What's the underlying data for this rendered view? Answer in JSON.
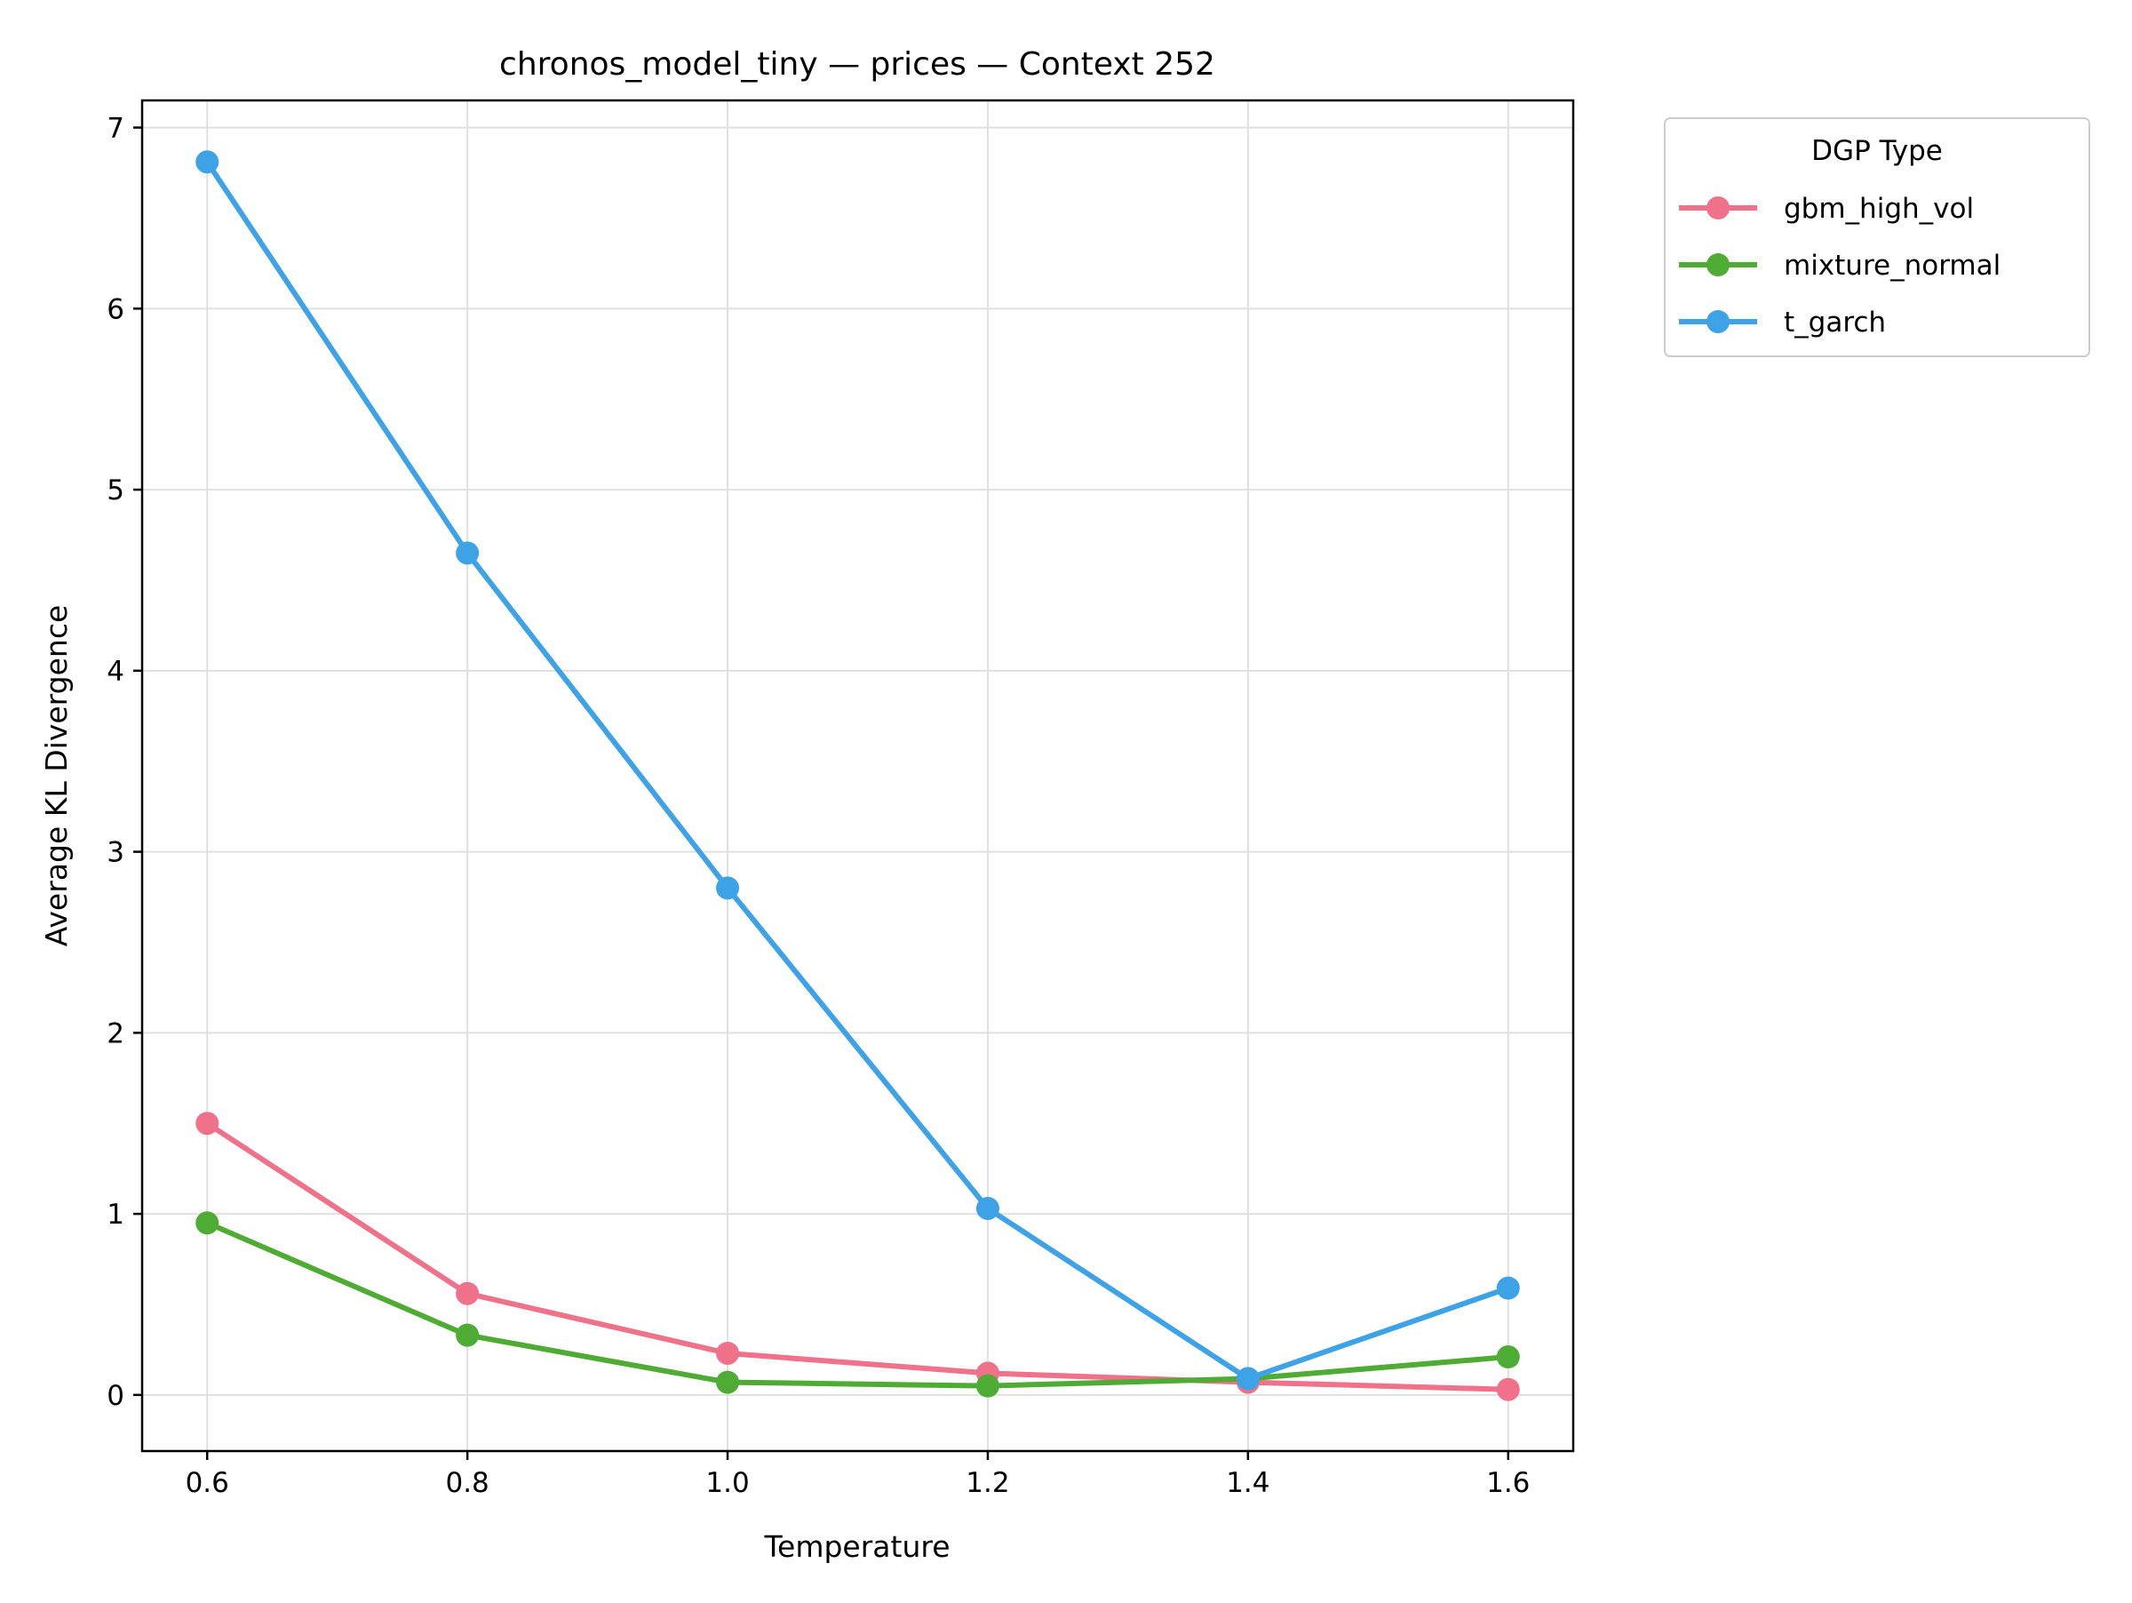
{
  "chart_data": {
    "type": "line",
    "title": "chronos_model_tiny — prices — Context 252",
    "xlabel": "Temperature",
    "ylabel": "Average KL Divergence",
    "x": [
      0.6,
      0.8,
      1.0,
      1.2,
      1.4,
      1.6
    ],
    "x_tick_labels": [
      "0.6",
      "0.8",
      "1.0",
      "1.2",
      "1.4",
      "1.6"
    ],
    "y_ticks": [
      0,
      1,
      2,
      3,
      4,
      5,
      6,
      7
    ],
    "y_tick_labels": [
      "0",
      "1",
      "2",
      "3",
      "4",
      "5",
      "6",
      "7"
    ],
    "xlim": [
      0.55,
      1.65
    ],
    "ylim": [
      -0.31,
      7.15
    ],
    "grid": true,
    "legend": {
      "title": "DGP Type",
      "placement": "outside-top-right"
    },
    "series": [
      {
        "name": "gbm_high_vol",
        "color": "#f0718a",
        "values": [
          1.5,
          0.56,
          0.23,
          0.12,
          0.07,
          0.03
        ]
      },
      {
        "name": "mixture_normal",
        "color": "#4eab33",
        "values": [
          0.95,
          0.33,
          0.07,
          0.05,
          0.09,
          0.21
        ]
      },
      {
        "name": "t_garch",
        "color": "#3ea2e6",
        "values": [
          6.81,
          4.65,
          2.8,
          1.03,
          0.09,
          0.59
        ]
      }
    ]
  }
}
